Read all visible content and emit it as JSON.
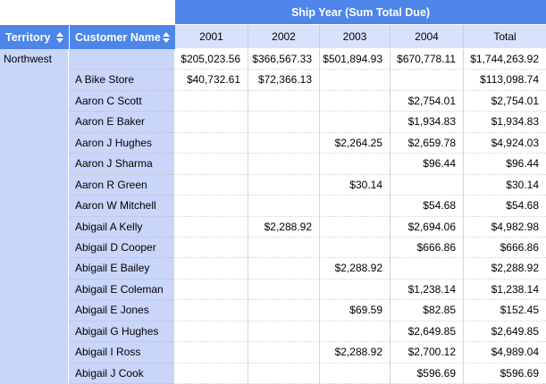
{
  "pivot": {
    "group_header": "Ship Year (Sum Total Due)",
    "row_area_headers": [
      {
        "label": "Territory"
      },
      {
        "label": "Customer Name"
      }
    ],
    "year_columns": [
      "2001",
      "2002",
      "2003",
      "2004",
      "Total"
    ],
    "territory": "Northwest",
    "rows": [
      {
        "customer": "",
        "values": [
          "$205,023.56",
          "$366,567.33",
          "$501,894.93",
          "$670,778.11",
          "$1,744,263.92"
        ]
      },
      {
        "customer": "A Bike Store",
        "values": [
          "$40,732.61",
          "$72,366.13",
          "",
          "",
          "$113,098.74"
        ]
      },
      {
        "customer": "Aaron C Scott",
        "values": [
          "",
          "",
          "",
          "$2,754.01",
          "$2,754.01"
        ]
      },
      {
        "customer": "Aaron E Baker",
        "values": [
          "",
          "",
          "",
          "$1,934.83",
          "$1,934.83"
        ]
      },
      {
        "customer": "Aaron J Hughes",
        "values": [
          "",
          "",
          "$2,264.25",
          "$2,659.78",
          "$4,924.03"
        ]
      },
      {
        "customer": "Aaron J Sharma",
        "values": [
          "",
          "",
          "",
          "$96.44",
          "$96.44"
        ]
      },
      {
        "customer": "Aaron R Green",
        "values": [
          "",
          "",
          "$30.14",
          "",
          "$30.14"
        ]
      },
      {
        "customer": "Aaron W Mitchell",
        "values": [
          "",
          "",
          "",
          "$54.68",
          "$54.68"
        ]
      },
      {
        "customer": "Abigail A Kelly",
        "values": [
          "",
          "$2,288.92",
          "",
          "$2,694.06",
          "$4,982.98"
        ]
      },
      {
        "customer": "Abigail D Cooper",
        "values": [
          "",
          "",
          "",
          "$666.86",
          "$666.86"
        ]
      },
      {
        "customer": "Abigail E Bailey",
        "values": [
          "",
          "",
          "$2,288.92",
          "",
          "$2,288.92"
        ]
      },
      {
        "customer": "Abigail E Coleman",
        "values": [
          "",
          "",
          "",
          "$1,238.14",
          "$1,238.14"
        ]
      },
      {
        "customer": "Abigail E Jones",
        "values": [
          "",
          "",
          "$69.59",
          "$82.85",
          "$152.45"
        ]
      },
      {
        "customer": "Abigail G Hughes",
        "values": [
          "",
          "",
          "",
          "$2,649.85",
          "$2,649.85"
        ]
      },
      {
        "customer": "Abigail I Ross",
        "values": [
          "",
          "",
          "$2,288.92",
          "$2,700.12",
          "$4,989.04"
        ]
      },
      {
        "customer": "Abigail J Cook",
        "values": [
          "",
          "",
          "",
          "$596.69",
          "$596.69"
        ]
      }
    ],
    "icons": {
      "territory_sort": "sort-arrows-icon",
      "customer_sort": "sort-arrows-icon"
    },
    "colors": {
      "header_blue": "#4D86E8",
      "year_row_bg": "#D9E2FB",
      "label_column_bg": "#C9D6FA",
      "grid_line": "#D5D5D5",
      "header_text": "#FFFFFF",
      "cell_text": "#000000"
    }
  }
}
